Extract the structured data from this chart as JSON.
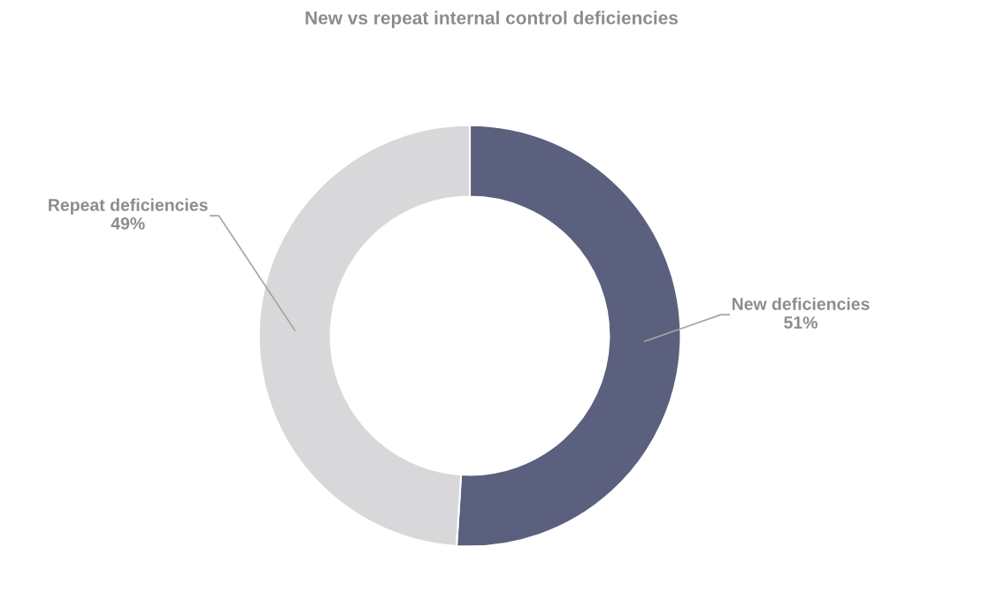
{
  "chart_data": {
    "type": "donut",
    "title": "New vs repeat internal control deficiencies",
    "categories": [
      "New deficiencies",
      "Repeat deficiencies"
    ],
    "values": [
      51,
      49
    ],
    "colors": [
      "#5a607e",
      "#d8d8da"
    ],
    "value_labels": [
      "51%",
      "49%"
    ],
    "legend": false
  }
}
